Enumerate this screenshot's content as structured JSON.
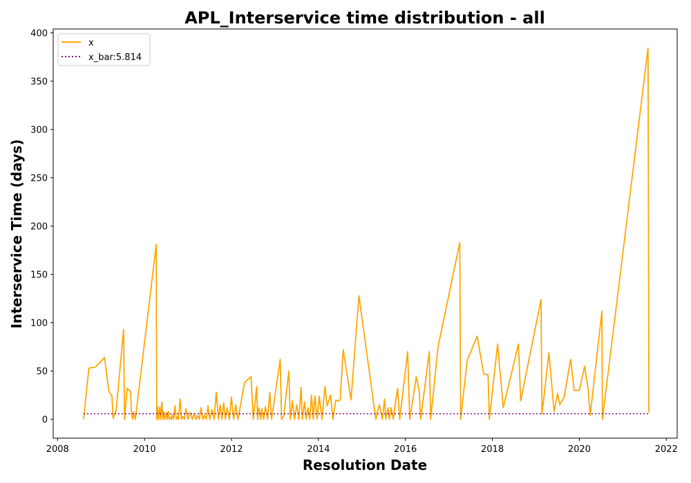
{
  "chart_data": {
    "type": "line",
    "title": "APL_Interservice time distribution - all",
    "xlabel": "Resolution Date",
    "ylabel": "Interservice Time (days)",
    "xlim": [
      2007.9,
      2022.25
    ],
    "ylim": [
      -19.5,
      404
    ],
    "x_ticks": [
      2008,
      2010,
      2012,
      2014,
      2016,
      2018,
      2020,
      2022
    ],
    "y_ticks": [
      0,
      50,
      100,
      150,
      200,
      250,
      300,
      350,
      400
    ],
    "grid": false,
    "legend_position": "top-left",
    "series": [
      {
        "name": "x",
        "color": "#FFA500",
        "style": "solid",
        "x": [
          2008.6,
          2008.72,
          2008.87,
          2009.08,
          2009.18,
          2009.25,
          2009.28,
          2009.35,
          2009.52,
          2009.54,
          2009.6,
          2009.68,
          2009.7,
          2009.73,
          2009.75,
          2009.79,
          2010.27,
          2010.28,
          2010.3,
          2010.32,
          2010.35,
          2010.37,
          2010.4,
          2010.42,
          2010.44,
          2010.47,
          2010.5,
          2010.52,
          2010.55,
          2010.57,
          2010.6,
          2010.62,
          2010.64,
          2010.67,
          2010.7,
          2010.73,
          2010.76,
          2010.78,
          2010.82,
          2010.85,
          2010.88,
          2010.92,
          2010.95,
          2011.0,
          2011.05,
          2011.1,
          2011.14,
          2011.18,
          2011.22,
          2011.26,
          2011.3,
          2011.34,
          2011.38,
          2011.42,
          2011.46,
          2011.5,
          2011.55,
          2011.6,
          2011.65,
          2011.7,
          2011.74,
          2011.78,
          2011.82,
          2011.86,
          2011.9,
          2011.95,
          2012.0,
          2012.05,
          2012.1,
          2012.15,
          2012.3,
          2012.45,
          2012.5,
          2012.58,
          2012.6,
          2012.63,
          2012.67,
          2012.7,
          2012.74,
          2012.78,
          2012.83,
          2012.88,
          2012.92,
          2012.96,
          2013.12,
          2013.15,
          2013.2,
          2013.32,
          2013.35,
          2013.4,
          2013.45,
          2013.5,
          2013.55,
          2013.6,
          2013.63,
          2013.68,
          2013.72,
          2013.76,
          2013.8,
          2013.84,
          2013.88,
          2013.92,
          2013.97,
          2014.02,
          2014.08,
          2014.15,
          2014.2,
          2014.28,
          2014.33,
          2014.4,
          2014.45,
          2014.5,
          2014.57,
          2014.75,
          2014.93,
          2015.32,
          2015.35,
          2015.4,
          2015.47,
          2015.52,
          2015.55,
          2015.6,
          2015.63,
          2015.67,
          2015.72,
          2015.76,
          2015.82,
          2015.87,
          2016.05,
          2016.1,
          2016.25,
          2016.32,
          2016.35,
          2016.55,
          2016.58,
          2016.75,
          2017.25,
          2017.27,
          2017.42,
          2017.65,
          2017.8,
          2017.9,
          2017.93,
          2018.12,
          2018.25,
          2018.6,
          2018.65,
          2019.12,
          2019.14,
          2019.3,
          2019.42,
          2019.5,
          2019.55,
          2019.65,
          2019.8,
          2019.88,
          2020.0,
          2020.12,
          2020.2,
          2020.25,
          2020.52,
          2020.53,
          2021.58,
          2021.6
        ],
        "y": [
          0,
          53,
          54,
          64,
          29,
          24,
          1,
          10,
          93,
          0,
          32,
          29,
          4,
          0,
          8,
          0,
          181,
          0,
          13,
          0,
          13,
          0,
          18,
          0,
          8,
          0,
          7,
          0,
          8,
          0,
          2,
          0,
          5,
          0,
          14,
          0,
          3,
          0,
          21,
          0,
          3,
          0,
          11,
          0,
          7,
          0,
          6,
          0,
          4,
          0,
          12,
          0,
          4,
          0,
          14,
          0,
          10,
          0,
          28,
          0,
          15,
          0,
          17,
          0,
          12,
          0,
          23,
          0,
          15,
          0,
          38,
          44,
          0,
          34,
          0,
          12,
          0,
          11,
          0,
          13,
          0,
          28,
          0,
          12,
          62,
          0,
          3,
          50,
          0,
          19,
          0,
          15,
          0,
          33,
          0,
          18,
          0,
          12,
          0,
          25,
          0,
          24,
          0,
          24,
          0,
          34,
          14,
          25,
          0,
          20,
          19,
          20,
          72,
          20,
          128,
          0,
          7,
          15,
          0,
          21,
          0,
          12,
          0,
          12,
          0,
          14,
          32,
          0,
          70,
          0,
          44,
          29,
          0,
          70,
          0,
          75,
          183,
          0,
          61,
          86,
          47,
          46,
          0,
          78,
          12,
          78,
          19,
          124,
          5,
          69,
          8,
          27,
          15,
          23,
          62,
          30,
          30,
          55,
          32,
          4,
          112,
          0,
          384,
          7
        ]
      },
      {
        "name": "x_bar:5.814",
        "color": "#800080",
        "style": "dotted",
        "x": [
          2008.6,
          2021.6
        ],
        "y": [
          5.814,
          5.814
        ]
      }
    ]
  }
}
